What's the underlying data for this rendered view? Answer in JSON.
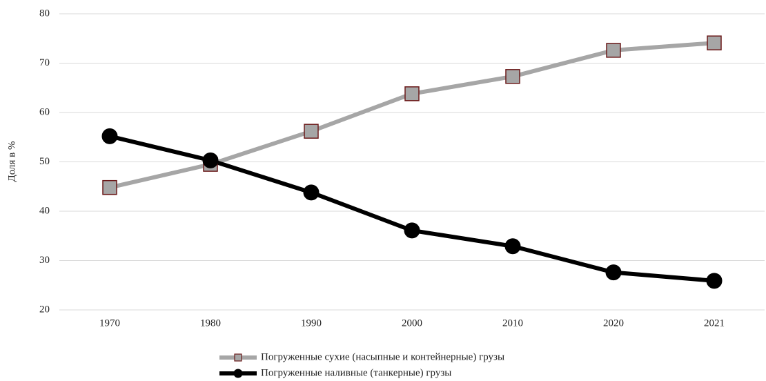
{
  "chart_data": {
    "type": "line",
    "y_label": "Доля в %",
    "categories": [
      "1970",
      "1980",
      "1990",
      "2000",
      "2010",
      "2020",
      "2021"
    ],
    "series": [
      {
        "name": "Погруженные сухие (насыпные и контейнерные) грузы",
        "color": "#a6a6a6",
        "marker": "square",
        "marker_edge": "#6b1a1a",
        "values": [
          44.8,
          49.5,
          56.2,
          63.8,
          67.3,
          72.6,
          74.1
        ]
      },
      {
        "name": "Погруженные наливные (танкерные) грузы",
        "color": "#000000",
        "marker": "circle",
        "marker_edge": "#000000",
        "values": [
          55.2,
          50.3,
          43.8,
          36.1,
          32.9,
          27.6,
          25.9
        ]
      }
    ],
    "ylim": [
      20,
      80
    ],
    "yticks": [
      20,
      30,
      40,
      50,
      60,
      70,
      80
    ],
    "grid": true,
    "legend": "bottom"
  }
}
